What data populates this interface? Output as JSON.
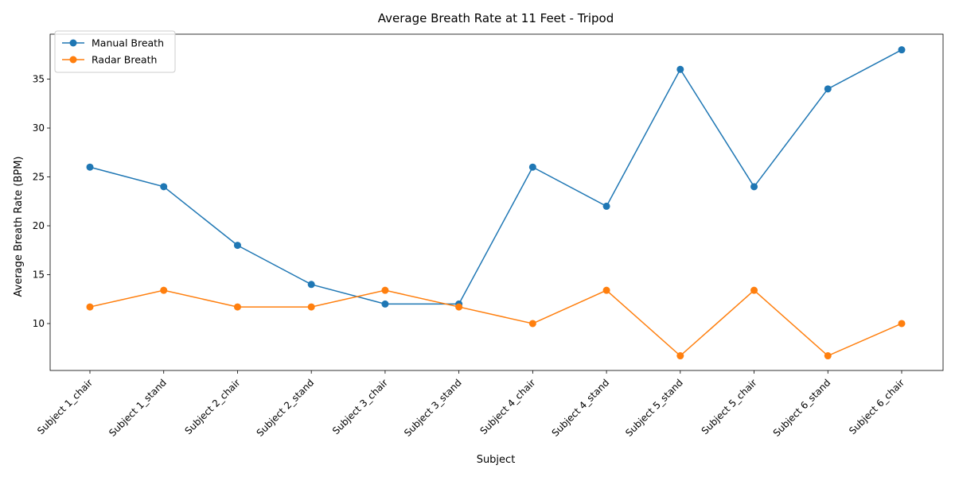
{
  "chart_data": {
    "type": "line",
    "title": "Average Breath Rate at 11 Feet - Tripod",
    "xlabel": "Subject",
    "ylabel": "Average Breath Rate (BPM)",
    "categories": [
      "Subject 1_chair",
      "Subject 1_stand",
      "Subject 2_chair",
      "Subject 2_stand",
      "Subject 3_chair",
      "Subject 3_stand",
      "Subject 4_chair",
      "Subject 4_stand",
      "Subject 5_stand",
      "Subject 5_chair",
      "Subject 6_stand",
      "Subject 6_chair"
    ],
    "ylim": [
      5.2,
      39.6
    ],
    "yticks": [
      10,
      15,
      20,
      25,
      30,
      35
    ],
    "grid": false,
    "legend_position": "top-left",
    "series": [
      {
        "name": "Manual Breath",
        "color": "#1f77b4",
        "marker": "circle",
        "values": [
          26,
          24,
          18,
          14,
          12,
          12,
          26,
          22,
          36,
          24,
          34,
          38
        ]
      },
      {
        "name": "Radar Breath",
        "color": "#ff7f0e",
        "marker": "circle",
        "values": [
          11.7,
          13.4,
          11.7,
          11.7,
          13.4,
          11.7,
          10.0,
          13.4,
          6.7,
          13.4,
          6.7,
          10.0
        ]
      }
    ]
  }
}
